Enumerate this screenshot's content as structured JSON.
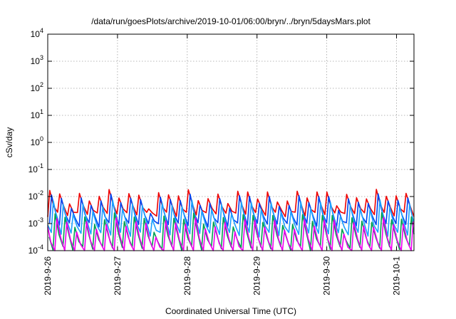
{
  "chart_data": {
    "type": "line",
    "title": "/data/run/goesPlots/archive/2019-10-01/06:00/bryn/../bryn/5daysMars.plot",
    "xlabel": "Coordinated Universal Time (UTC)",
    "ylabel": "cSv/day",
    "yscale": "log",
    "ylim": [
      0.0001,
      10000
    ],
    "xlim": [
      "2019-09-26 00:00",
      "2019-10-01 06:00"
    ],
    "x_ticks": [
      "2019-9-26",
      "2019-9-27",
      "2019-9-28",
      "2019-9-29",
      "2019-9-30",
      "2019-10-1"
    ],
    "y_ticks": [
      {
        "value": 0.0001,
        "base": "10",
        "exp": "-4"
      },
      {
        "value": 0.001,
        "base": "10",
        "exp": "-3"
      },
      {
        "value": 0.01,
        "base": "10",
        "exp": "-2"
      },
      {
        "value": 0.1,
        "base": "10",
        "exp": "-1"
      },
      {
        "value": 1,
        "base": "10",
        "exp": "0"
      },
      {
        "value": 10,
        "base": "10",
        "exp": "1"
      },
      {
        "value": 100,
        "base": "10",
        "exp": "2"
      },
      {
        "value": 1000,
        "base": "10",
        "exp": "3"
      },
      {
        "value": 10000,
        "base": "10",
        "exp": "4"
      }
    ],
    "grid": true,
    "legend": "none",
    "series": [
      {
        "color": "#ee0000",
        "peak": 0.011,
        "trough": 0.0022
      },
      {
        "color": "#0044ee",
        "peak": 0.0075,
        "trough": 0.0009
      },
      {
        "color": "#1aa0ff",
        "peak": 0.0045,
        "trough": 0.0004
      },
      {
        "color": "#00a050",
        "peak": 0.0015,
        "trough": 0.00012
      },
      {
        "color": "#ee00ee",
        "peak": 0.001,
        "trough": 8e-05
      }
    ]
  }
}
